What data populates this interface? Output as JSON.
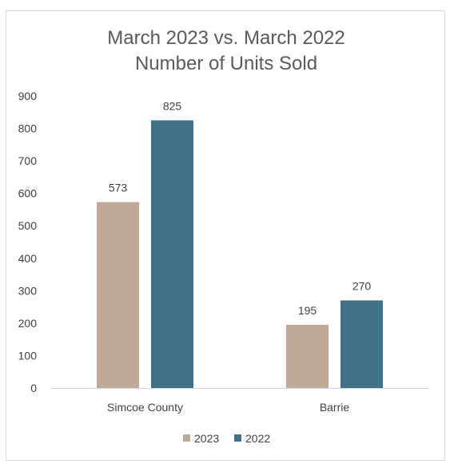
{
  "chart_data": {
    "type": "bar",
    "title_line1": "March 2023 vs. March 2022",
    "title_line2": "Number of Units Sold",
    "categories": [
      "Simcoe County",
      "Barrie"
    ],
    "series": [
      {
        "name": "2023",
        "values": [
          573,
          195
        ],
        "color": "#c0a999"
      },
      {
        "name": "2022",
        "values": [
          825,
          270
        ],
        "color": "#3e728a"
      }
    ],
    "ylim": [
      0,
      900
    ],
    "yticks": [
      0,
      100,
      200,
      300,
      400,
      500,
      600,
      700,
      800,
      900
    ],
    "grid": false,
    "legend": "bottom"
  }
}
